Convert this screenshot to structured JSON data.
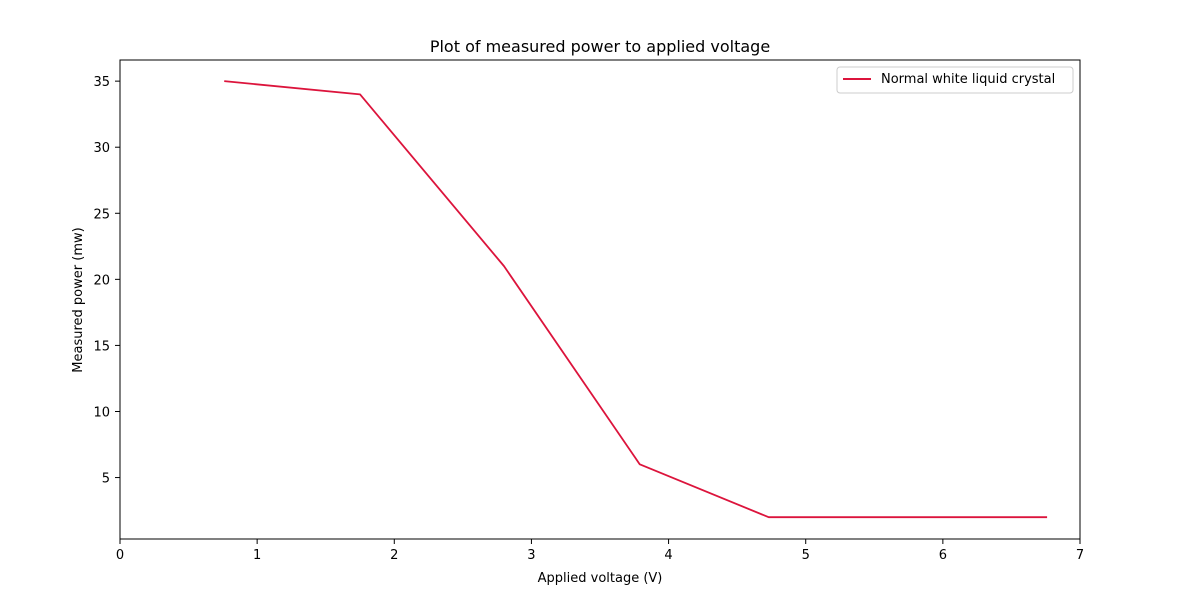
{
  "chart_data": {
    "type": "line",
    "title": "Plot of measured power to applied voltage",
    "xlabel": "Applied voltage (V)",
    "ylabel": "Measured power (mw)",
    "xlim": [
      0,
      7
    ],
    "ylim": [
      0.35,
      36.6
    ],
    "xticks": [
      0,
      1,
      2,
      3,
      4,
      5,
      6,
      7
    ],
    "yticks": [
      5,
      10,
      15,
      20,
      25,
      30,
      35
    ],
    "grid": false,
    "legend_position": "upper-right",
    "series": [
      {
        "name": "Normal white liquid crystal",
        "color": "#dc143c",
        "x": [
          0.76,
          1.75,
          2.8,
          3.79,
          4.73,
          6.76
        ],
        "y": [
          35,
          34,
          21,
          6,
          2,
          2
        ]
      }
    ]
  }
}
